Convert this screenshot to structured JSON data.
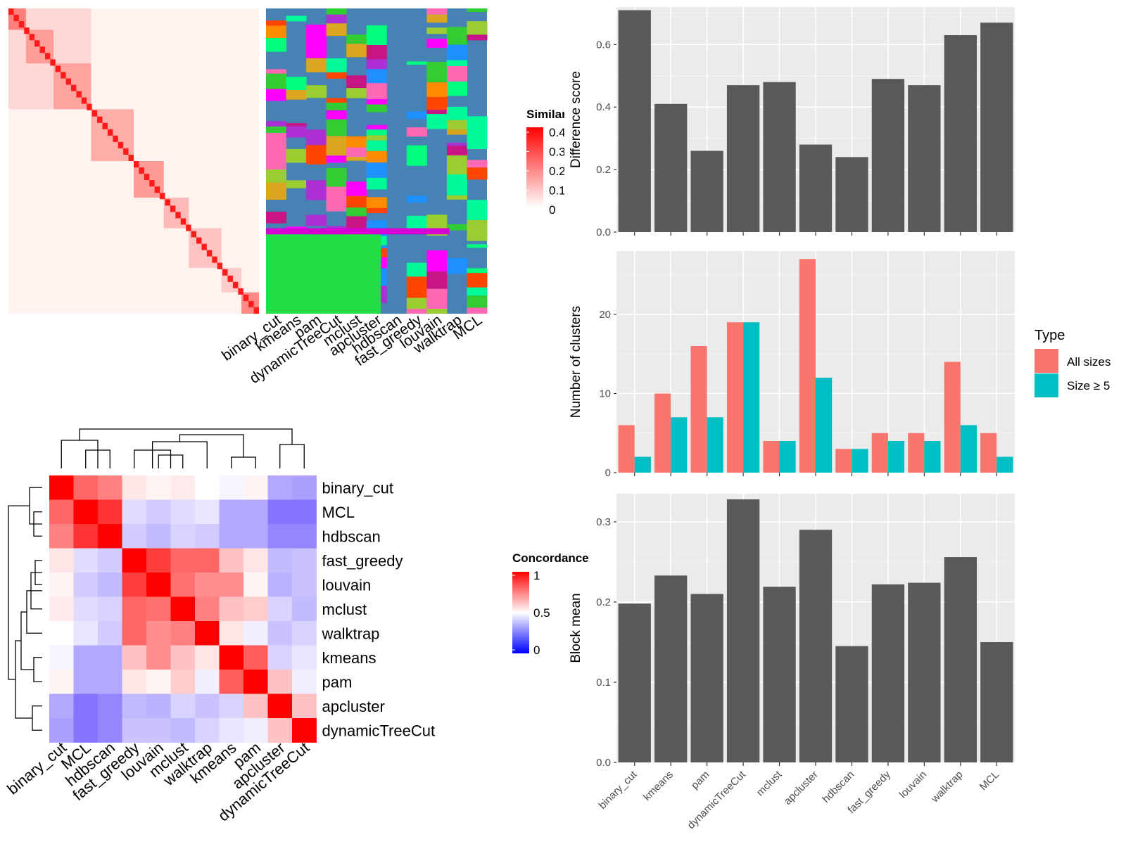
{
  "chart_data": [
    {
      "type": "heatmap",
      "legend": {
        "title": "Similarity",
        "ticks": [
          "0.4",
          "0.3",
          "0.2",
          "0.1",
          "0"
        ]
      },
      "note": "term similarity matrix; fine-grained values are not legible"
    },
    {
      "type": "table",
      "columns": [
        "binary_cut",
        "kmeans",
        "pam",
        "dynamicTreeCut",
        "mclust",
        "apcluster",
        "hdbscan",
        "fast_greedy",
        "louvain",
        "walktrap",
        "MCL"
      ],
      "note": "cluster assignments per method shown as colored bands"
    },
    {
      "type": "heatmap",
      "legend": {
        "title": "Concordance",
        "ticks": [
          "1",
          "0.5",
          "0"
        ]
      },
      "rows": [
        "binary_cut",
        "MCL",
        "hdbscan",
        "fast_greedy",
        "louvain",
        "mclust",
        "walktrap",
        "kmeans",
        "pam",
        "apcluster",
        "dynamicTreeCut"
      ],
      "columns": [
        "binary_cut",
        "MCL",
        "hdbscan",
        "fast_greedy",
        "louvain",
        "mclust",
        "walktrap",
        "kmeans",
        "pam",
        "apcluster",
        "dynamicTreeCut"
      ],
      "values": [
        [
          1.0,
          0.8,
          0.75,
          0.55,
          0.52,
          0.54,
          0.5,
          0.48,
          0.52,
          0.3,
          0.28
        ],
        [
          0.8,
          1.0,
          0.9,
          0.42,
          0.38,
          0.42,
          0.44,
          0.3,
          0.3,
          0.18,
          0.18
        ],
        [
          0.75,
          0.9,
          1.0,
          0.38,
          0.34,
          0.4,
          0.38,
          0.3,
          0.3,
          0.22,
          0.22
        ],
        [
          0.55,
          0.42,
          0.38,
          1.0,
          0.88,
          0.8,
          0.8,
          0.62,
          0.55,
          0.34,
          0.36
        ],
        [
          0.52,
          0.38,
          0.34,
          0.88,
          1.0,
          0.78,
          0.72,
          0.72,
          0.52,
          0.32,
          0.36
        ],
        [
          0.54,
          0.42,
          0.4,
          0.8,
          0.78,
          1.0,
          0.75,
          0.62,
          0.6,
          0.4,
          0.34
        ],
        [
          0.5,
          0.44,
          0.38,
          0.8,
          0.72,
          0.75,
          1.0,
          0.55,
          0.46,
          0.36,
          0.4
        ],
        [
          0.48,
          0.3,
          0.3,
          0.62,
          0.72,
          0.62,
          0.55,
          1.0,
          0.82,
          0.4,
          0.44
        ],
        [
          0.52,
          0.3,
          0.3,
          0.55,
          0.52,
          0.6,
          0.46,
          0.82,
          1.0,
          0.62,
          0.46
        ],
        [
          0.3,
          0.18,
          0.22,
          0.34,
          0.32,
          0.4,
          0.36,
          0.4,
          0.62,
          1.0,
          0.62
        ],
        [
          0.28,
          0.18,
          0.22,
          0.36,
          0.36,
          0.34,
          0.4,
          0.44,
          0.46,
          0.62,
          1.0
        ]
      ]
    },
    {
      "type": "bar",
      "categories": [
        "binary_cut",
        "kmeans",
        "pam",
        "dynamicTreeCut",
        "mclust",
        "apcluster",
        "hdbscan",
        "fast_greedy",
        "louvain",
        "walktrap",
        "MCL"
      ],
      "values": [
        0.71,
        0.41,
        0.26,
        0.47,
        0.48,
        0.28,
        0.24,
        0.49,
        0.47,
        0.63,
        0.67
      ],
      "ylabel": "Difference score",
      "ylim": [
        0,
        0.72
      ],
      "yticks": [
        "0.0",
        "0.2",
        "0.4",
        "0.6"
      ],
      "show_x_labels": false
    },
    {
      "type": "bar",
      "categories": [
        "binary_cut",
        "kmeans",
        "pam",
        "dynamicTreeCut",
        "mclust",
        "apcluster",
        "hdbscan",
        "fast_greedy",
        "louvain",
        "walktrap",
        "MCL"
      ],
      "series": [
        {
          "name": "All sizes",
          "values": [
            6,
            10,
            16,
            19,
            4,
            27,
            3,
            5,
            5,
            14,
            5
          ]
        },
        {
          "name": "Size ≥ 5",
          "values": [
            2,
            7,
            7,
            19,
            4,
            12,
            3,
            4,
            4,
            6,
            2
          ]
        }
      ],
      "ylabel": "Number of clusters",
      "ylim": [
        0,
        28
      ],
      "yticks": [
        "0",
        "10",
        "20"
      ],
      "show_x_labels": false,
      "legend": {
        "title": "Type",
        "position": "right"
      }
    },
    {
      "type": "bar",
      "categories": [
        "binary_cut",
        "kmeans",
        "pam",
        "dynamicTreeCut",
        "mclust",
        "apcluster",
        "hdbscan",
        "fast_greedy",
        "louvain",
        "walktrap",
        "MCL"
      ],
      "values": [
        0.198,
        0.233,
        0.21,
        0.328,
        0.219,
        0.29,
        0.145,
        0.222,
        0.224,
        0.256,
        0.15
      ],
      "ylabel": "Block mean",
      "ylim": [
        0,
        0.335
      ],
      "yticks": [
        "0.0",
        "0.1",
        "0.2",
        "0.3"
      ],
      "show_x_labels": true
    }
  ],
  "colors": {
    "bar": "#595959",
    "all_sizes": "#F8766D",
    "size_ge_5": "#00BFC4",
    "panel_bg": "#EBEBEB",
    "grid": "#FFFFFF",
    "similarity_high": "#FF0000",
    "concordance_high": "#FF0000",
    "concordance_mid": "#FFFFFF",
    "concordance_low": "#0000FF",
    "cluster_bg": "#4682B4"
  }
}
